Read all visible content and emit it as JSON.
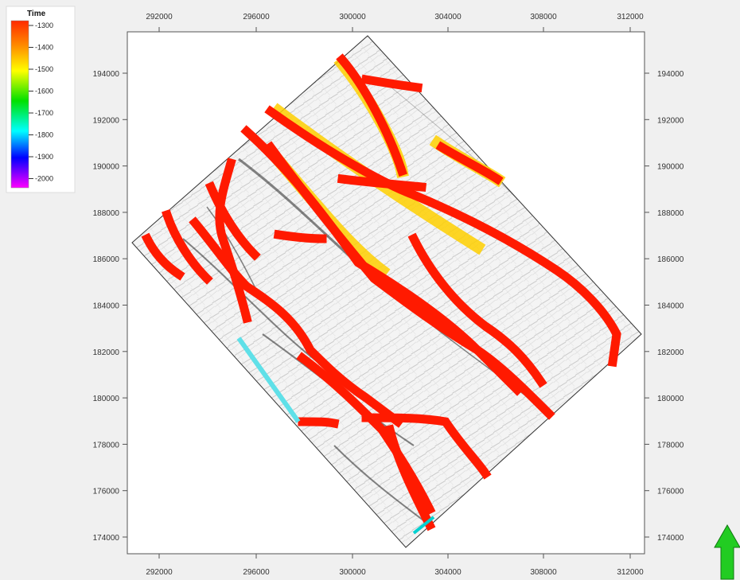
{
  "legend": {
    "title": "Time",
    "labels": [
      "-1300",
      "-1400",
      "-1500",
      "-1600",
      "-1700",
      "-1800",
      "-1900",
      "-2000"
    ],
    "gradient_colors": [
      "#ff2a00",
      "#ff8c00",
      "#ffff00",
      "#00e000",
      "#00ffff",
      "#0000ff",
      "#ff00ff"
    ]
  },
  "axes": {
    "x_ticks": [
      "292000",
      "296000",
      "300000",
      "304000",
      "308000",
      "312000"
    ],
    "y_ticks": [
      "194000",
      "192000",
      "190000",
      "188000",
      "186000",
      "184000",
      "182000",
      "180000",
      "178000",
      "176000",
      "174000"
    ]
  },
  "colors": {
    "background": "#f0f0f0",
    "plot_background": "#ffffff",
    "fault_marker": "#ff1a00",
    "north_arrow": "#22cc22"
  },
  "icons": {
    "north_arrow": "north-arrow-icon"
  }
}
